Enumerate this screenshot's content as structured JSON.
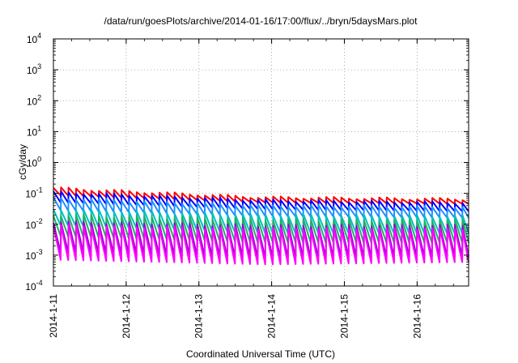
{
  "chart_data": {
    "type": "line",
    "title": "/data/run/goesPlots/archive/2014-01-16/17:00/flux/../bryn/5daysMars.plot",
    "xlabel": "Coordinated Universal Time (UTC)",
    "ylabel": "cGy/day",
    "yscale": "log",
    "ylim": [
      0.0001,
      10000
    ],
    "xlim": [
      "2014-01-11T00:00",
      "2014-01-16T17:00"
    ],
    "grid": true,
    "legend": "none",
    "y_ticks": [
      {
        "base": "10",
        "exp": "-4"
      },
      {
        "base": "10",
        "exp": "-3"
      },
      {
        "base": "10",
        "exp": "-2"
      },
      {
        "base": "10",
        "exp": "-1"
      },
      {
        "base": "10",
        "exp": "0"
      },
      {
        "base": "10",
        "exp": "1"
      },
      {
        "base": "10",
        "exp": "2"
      },
      {
        "base": "10",
        "exp": "3"
      },
      {
        "base": "10",
        "exp": "4"
      }
    ],
    "x_ticks": [
      "2014-1-11",
      "2014-1-12",
      "2014-1-13",
      "2014-1-14",
      "2014-1-15",
      "2014-1-16"
    ],
    "period_hours": 2.5,
    "series": [
      {
        "color": "#ff0000",
        "peak_start": 0.15,
        "peak_mid": 0.075,
        "peak_end": 0.065,
        "trough_start": 0.085,
        "trough_mid": 0.05,
        "trough_end": 0.045
      },
      {
        "color": "#0000ff",
        "peak_start": 0.11,
        "peak_mid": 0.06,
        "peak_end": 0.05,
        "trough_start": 0.05,
        "trough_mid": 0.03,
        "trough_end": 0.026
      },
      {
        "color": "#1e90ff",
        "peak_start": 0.07,
        "peak_mid": 0.04,
        "peak_end": 0.035,
        "trough_start": 0.028,
        "trough_mid": 0.018,
        "trough_end": 0.016
      },
      {
        "color": "#00c0c0",
        "peak_start": 0.03,
        "peak_mid": 0.02,
        "peak_end": 0.018,
        "trough_start": 0.009,
        "trough_mid": 0.005,
        "trough_end": 0.005
      },
      {
        "color": "#20b060",
        "peak_start": 0.02,
        "peak_mid": 0.014,
        "peak_end": 0.013,
        "trough_start": 0.004,
        "trough_mid": 0.0025,
        "trough_end": 0.0025
      },
      {
        "color": "#9400d3",
        "peak_start": 0.012,
        "peak_mid": 0.009,
        "peak_end": 0.009,
        "trough_start": 0.0012,
        "trough_mid": 0.0008,
        "trough_end": 0.0009
      },
      {
        "color": "#ff00ff",
        "peak_start": 0.009,
        "peak_mid": 0.007,
        "peak_end": 0.007,
        "trough_start": 0.0007,
        "trough_mid": 0.0005,
        "trough_end": 0.0006
      }
    ]
  }
}
